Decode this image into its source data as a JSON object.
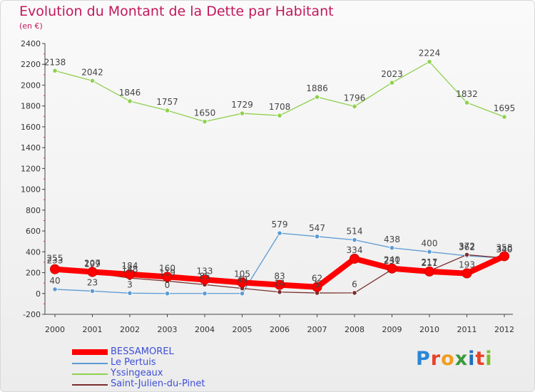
{
  "header": {
    "title": "Evolution du Montant de la Dette par Habitant",
    "subtitle": "(en €)"
  },
  "logo": {
    "text": "Proxiti",
    "colors": [
      "#2a86d6",
      "#e6432a",
      "#f29c1f",
      "#3a9a3a",
      "#1f6fc0",
      "#e6432a",
      "#7bbf2a"
    ]
  },
  "chart_data": {
    "type": "line",
    "title": "Evolution du Montant de la Dette par Habitant",
    "subtitle": "(en €)",
    "xlabel": "",
    "ylabel": "",
    "categories": [
      "2000",
      "2001",
      "2002",
      "2003",
      "2004",
      "2005",
      "2006",
      "2007",
      "2008",
      "2009",
      "2010",
      "2011",
      "2012"
    ],
    "ylim": [
      -200,
      2400
    ],
    "yticks": [
      -200,
      0,
      200,
      400,
      600,
      800,
      1000,
      1200,
      1400,
      1600,
      1800,
      2000,
      2200,
      2400
    ],
    "grid": false,
    "legend": "bottom-left",
    "series": [
      {
        "name": "BESSAMOREL",
        "color": "#ff0000",
        "values": [
          233,
          207,
          184,
          160,
          133,
          105,
          83,
          62,
          334,
          240,
          211,
          193,
          358
        ],
        "labels": [
          "233",
          "207",
          "184",
          "160",
          "133",
          "105",
          "83",
          "62",
          "334",
          "240",
          "211",
          "193",
          "358"
        ]
      },
      {
        "name": "Le Pertuis",
        "color": "#5b9bd5",
        "values": [
          40,
          23,
          3,
          0,
          0,
          0,
          579,
          547,
          514,
          438,
          400,
          362,
          340
        ],
        "labels": [
          "40",
          "23",
          "3",
          "0",
          "",
          "",
          "579",
          "547",
          "514",
          "438",
          "400",
          "362",
          "340"
        ]
      },
      {
        "name": "Yssingeaux",
        "color": "#8fd14f",
        "values": [
          2138,
          2042,
          1846,
          1757,
          1650,
          1729,
          1708,
          1886,
          1796,
          2023,
          2224,
          1832,
          1695
        ],
        "labels": [
          "2138",
          "2042",
          "1846",
          "1757",
          "1650",
          "1729",
          "1708",
          "1886",
          "1796",
          "2023",
          "2224",
          "1832",
          "1695"
        ]
      },
      {
        "name": "Saint-Julien-du-Pinet",
        "color": "#7a2e2e",
        "values": [
          255,
          199,
          148,
          119,
          85,
          49,
          14,
          5,
          6,
          231,
          217,
          372,
          340
        ],
        "labels": [
          "255",
          "199",
          "148",
          "119",
          "85",
          "49",
          "14",
          "5",
          "6",
          "231",
          "217",
          "372",
          "340"
        ]
      }
    ]
  }
}
